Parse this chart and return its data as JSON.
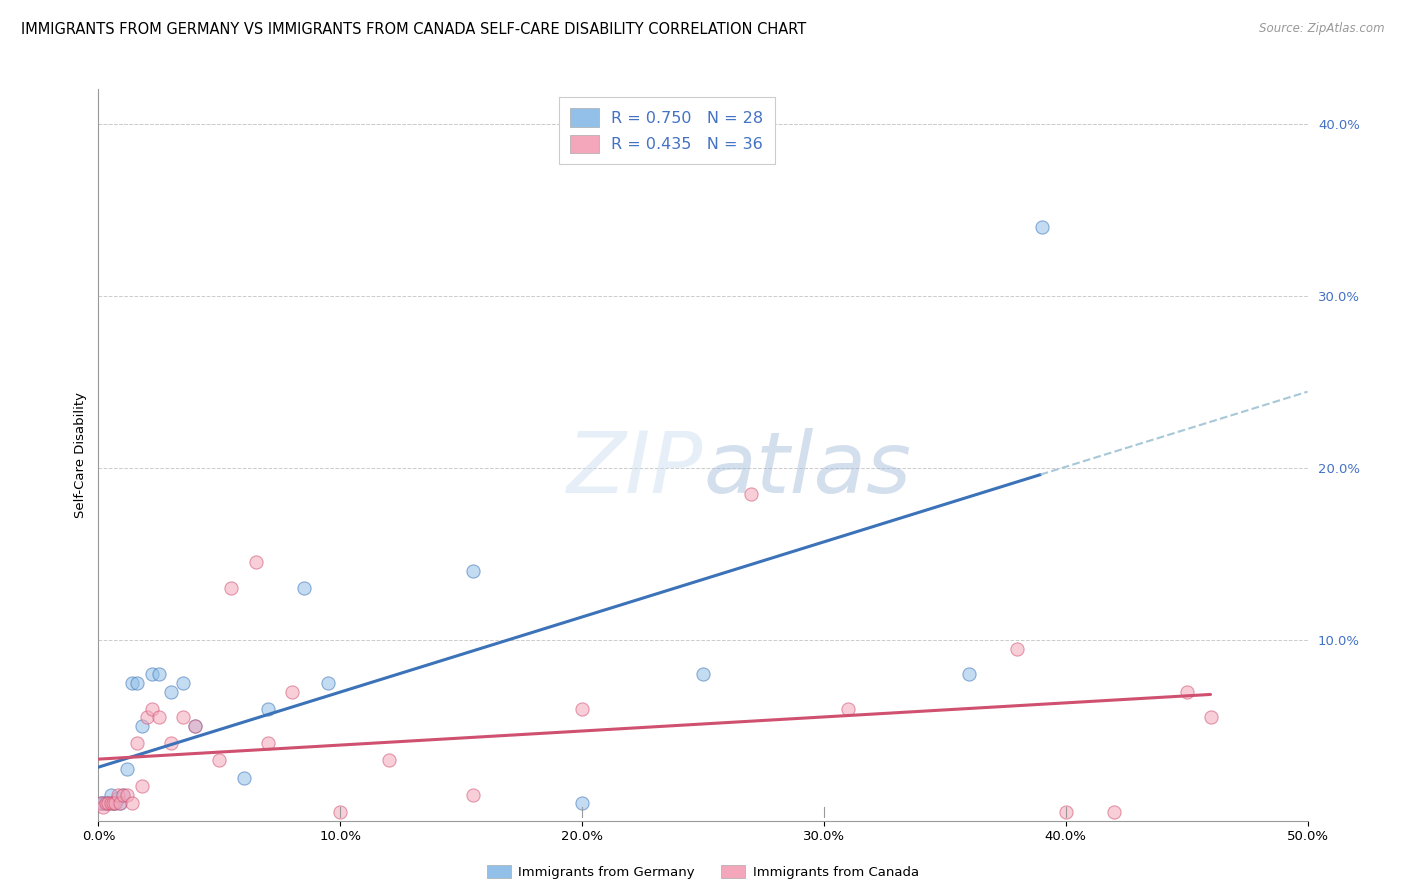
{
  "title": "IMMIGRANTS FROM GERMANY VS IMMIGRANTS FROM CANADA SELF-CARE DISABILITY CORRELATION CHART",
  "source": "Source: ZipAtlas.com",
  "ylabel": "Self-Care Disability",
  "xlim": [
    0.0,
    0.5
  ],
  "ylim": [
    -0.005,
    0.42
  ],
  "xticks": [
    0.0,
    0.1,
    0.2,
    0.3,
    0.4,
    0.5
  ],
  "yticks_right": [
    0.1,
    0.2,
    0.3,
    0.4
  ],
  "germany_color": "#92C0E8",
  "canada_color": "#F4A7BA",
  "germany_line_color": "#3B72B8",
  "canada_line_color": "#D05070",
  "germany_dash_color": "#A8C8D8",
  "germany_R": 0.75,
  "germany_N": 28,
  "canada_R": 0.435,
  "canada_N": 36,
  "legend_text_color": "#4472C4",
  "germany_scatter_x": [
    0.001,
    0.002,
    0.003,
    0.004,
    0.005,
    0.006,
    0.007,
    0.008,
    0.009,
    0.01,
    0.012,
    0.014,
    0.016,
    0.018,
    0.022,
    0.025,
    0.03,
    0.035,
    0.04,
    0.06,
    0.07,
    0.085,
    0.095,
    0.155,
    0.2,
    0.25,
    0.36,
    0.39
  ],
  "germany_scatter_y": [
    0.005,
    0.005,
    0.005,
    0.005,
    0.01,
    0.005,
    0.005,
    0.008,
    0.005,
    0.01,
    0.025,
    0.075,
    0.075,
    0.05,
    0.08,
    0.08,
    0.07,
    0.075,
    0.05,
    0.02,
    0.06,
    0.13,
    0.075,
    0.14,
    0.005,
    0.08,
    0.08,
    0.34
  ],
  "canada_scatter_x": [
    0.001,
    0.002,
    0.003,
    0.004,
    0.005,
    0.006,
    0.007,
    0.008,
    0.009,
    0.01,
    0.012,
    0.014,
    0.016,
    0.018,
    0.02,
    0.022,
    0.025,
    0.03,
    0.035,
    0.04,
    0.05,
    0.055,
    0.065,
    0.07,
    0.08,
    0.1,
    0.12,
    0.155,
    0.2,
    0.27,
    0.31,
    0.38,
    0.4,
    0.42,
    0.45,
    0.46
  ],
  "canada_scatter_y": [
    0.005,
    0.003,
    0.005,
    0.005,
    0.005,
    0.005,
    0.005,
    0.01,
    0.005,
    0.01,
    0.01,
    0.005,
    0.04,
    0.015,
    0.055,
    0.06,
    0.055,
    0.04,
    0.055,
    0.05,
    0.03,
    0.13,
    0.145,
    0.04,
    0.07,
    0.0,
    0.03,
    0.01,
    0.06,
    0.185,
    0.06,
    0.095,
    0.0,
    0.0,
    0.07,
    0.055
  ],
  "background_color": "#ffffff",
  "grid_color": "#cccccc",
  "title_fontsize": 10.5,
  "axis_label_fontsize": 9.5,
  "tick_label_fontsize": 9.5,
  "legend_fontsize": 11.5
}
